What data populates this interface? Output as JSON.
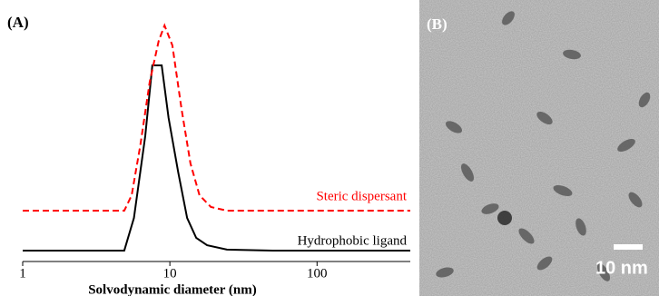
{
  "chart_data": {
    "type": "line",
    "panel_label": "(A)",
    "x_label": "Solvodynamic diameter (nm)",
    "log_x": true,
    "xlim": [
      1,
      430
    ],
    "xticks": [
      1,
      10,
      100
    ],
    "ylim": [
      0,
      100
    ],
    "annotations": [
      "Steric dispersant",
      "Hydrophobic ligand"
    ],
    "series": [
      {
        "name": "Hydrophobic ligand",
        "color": "#000000",
        "dash": false,
        "x": [
          1,
          4.9,
          5.7,
          6.8,
          7.6,
          8.8,
          9.8,
          11.4,
          13.1,
          15.1,
          17.9,
          24.4,
          49.9,
          430
        ],
        "values": [
          4.5,
          4.5,
          17.9,
          51.5,
          80.6,
          80.6,
          59,
          36.6,
          17.9,
          9.7,
          6.7,
          4.9,
          4.5,
          4.5
        ]
      },
      {
        "name": "Steric dispersant",
        "color": "#ff0000",
        "dash": true,
        "x": [
          1,
          4.9,
          5.5,
          6.3,
          7.3,
          8.4,
          9.2,
          10.4,
          12,
          13.8,
          15.9,
          19,
          24.4,
          430
        ],
        "values": [
          20.9,
          20.9,
          27.2,
          47.8,
          73.9,
          90.7,
          97,
          88.8,
          62.7,
          40.3,
          27.2,
          22.4,
          20.9,
          20.9
        ]
      }
    ]
  },
  "image": {
    "panel_label": "(B)",
    "scale_bar_label": "10 nm"
  }
}
